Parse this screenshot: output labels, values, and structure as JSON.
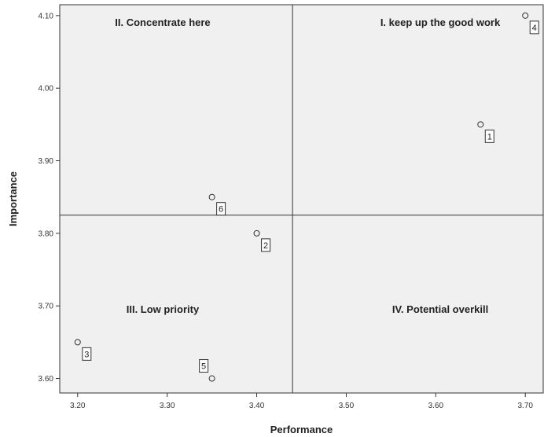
{
  "chart_data": {
    "type": "scatter",
    "xlabel": "Performance",
    "ylabel": "Importance",
    "xlim": [
      3.18,
      3.72
    ],
    "ylim": [
      3.58,
      4.115
    ],
    "xticks": [
      3.2,
      3.3,
      3.4,
      3.5,
      3.6,
      3.7
    ],
    "xtick_labels": [
      "3.20",
      "3.30",
      "3.40",
      "3.50",
      "3.60",
      "3.70"
    ],
    "yticks": [
      3.6,
      3.7,
      3.8,
      3.9,
      4.0,
      4.1
    ],
    "ytick_labels": [
      "3.60",
      "3.70",
      "3.80",
      "3.90",
      "4.00",
      "4.10"
    ],
    "reference_lines": {
      "x": 3.44,
      "y": 3.825
    },
    "quadrant_labels": [
      {
        "text": "I. keep up the good work",
        "x": 3.605,
        "y": 4.09
      },
      {
        "text": "II. Concentrate here",
        "x": 3.295,
        "y": 4.09
      },
      {
        "text": "III. Low priority",
        "x": 3.295,
        "y": 3.695
      },
      {
        "text": "IV. Potential overkill",
        "x": 3.605,
        "y": 3.695
      }
    ],
    "points": [
      {
        "label": "1",
        "x": 3.65,
        "y": 3.95,
        "label_pos": "below-right"
      },
      {
        "label": "2",
        "x": 3.4,
        "y": 3.8,
        "label_pos": "below-right"
      },
      {
        "label": "3",
        "x": 3.2,
        "y": 3.65,
        "label_pos": "below-right"
      },
      {
        "label": "4",
        "x": 3.7,
        "y": 4.1,
        "label_pos": "below-right"
      },
      {
        "label": "5",
        "x": 3.35,
        "y": 3.6,
        "label_pos": "above-left"
      },
      {
        "label": "6",
        "x": 3.35,
        "y": 3.85,
        "label_pos": "below-right"
      }
    ],
    "colors": {
      "plot_background": "#f0f0f0",
      "lines": "#333333"
    }
  }
}
